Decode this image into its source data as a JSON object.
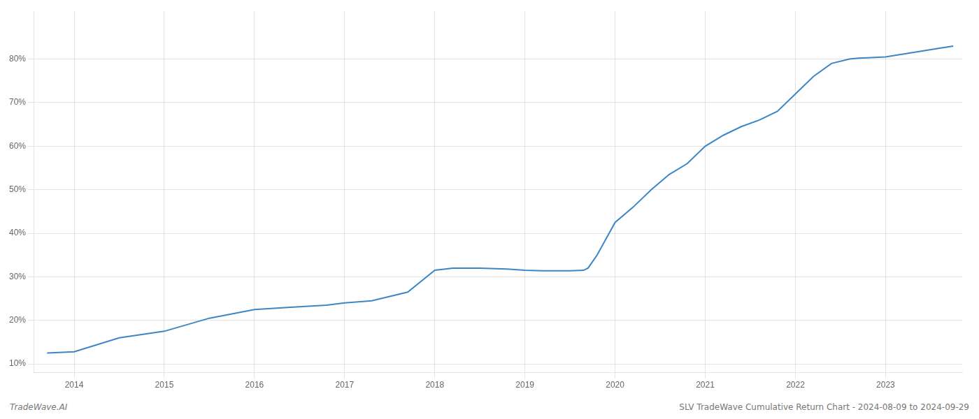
{
  "chart_data": {
    "type": "line",
    "x": [
      2013.7,
      2014.0,
      2014.5,
      2015.0,
      2015.5,
      2016.0,
      2016.4,
      2016.8,
      2017.0,
      2017.3,
      2017.7,
      2018.0,
      2018.2,
      2018.5,
      2018.8,
      2019.0,
      2019.2,
      2019.5,
      2019.65,
      2019.7,
      2019.8,
      2020.0,
      2020.2,
      2020.4,
      2020.6,
      2020.8,
      2021.0,
      2021.2,
      2021.4,
      2021.6,
      2021.8,
      2022.0,
      2022.2,
      2022.4,
      2022.6,
      2022.7,
      2022.8,
      2023.0,
      2023.3,
      2023.6,
      2023.75
    ],
    "values": [
      12.5,
      12.8,
      16.0,
      17.5,
      20.5,
      22.5,
      23.0,
      23.5,
      24.0,
      24.5,
      26.5,
      31.5,
      32.0,
      32.0,
      31.8,
      31.5,
      31.4,
      31.4,
      31.5,
      32.0,
      35.0,
      42.5,
      46.0,
      50.0,
      53.5,
      56.0,
      60.0,
      62.5,
      64.5,
      66.0,
      68.0,
      72.0,
      76.0,
      79.0,
      80.0,
      80.2,
      80.3,
      80.5,
      81.5,
      82.5,
      83.0
    ],
    "color": "#3d86c6",
    "xlim": [
      2013.55,
      2023.85
    ],
    "xticks": [
      2014,
      2015,
      2016,
      2017,
      2018,
      2019,
      2020,
      2021,
      2022,
      2023
    ],
    "ylim": [
      8,
      91
    ],
    "yticks": [
      {
        "value": 10,
        "label": "10%"
      },
      {
        "value": 20,
        "label": "20%"
      },
      {
        "value": 30,
        "label": "30%"
      },
      {
        "value": 40,
        "label": "40%"
      },
      {
        "value": 50,
        "label": "50%"
      },
      {
        "value": 60,
        "label": "60%"
      },
      {
        "value": 70,
        "label": "70%"
      },
      {
        "value": 80,
        "label": "80%"
      }
    ],
    "grid": true,
    "annotations": [
      "TradeWave.AI",
      "SLV TradeWave Cumulative Return Chart - 2024-08-09 to 2024-09-29"
    ]
  }
}
